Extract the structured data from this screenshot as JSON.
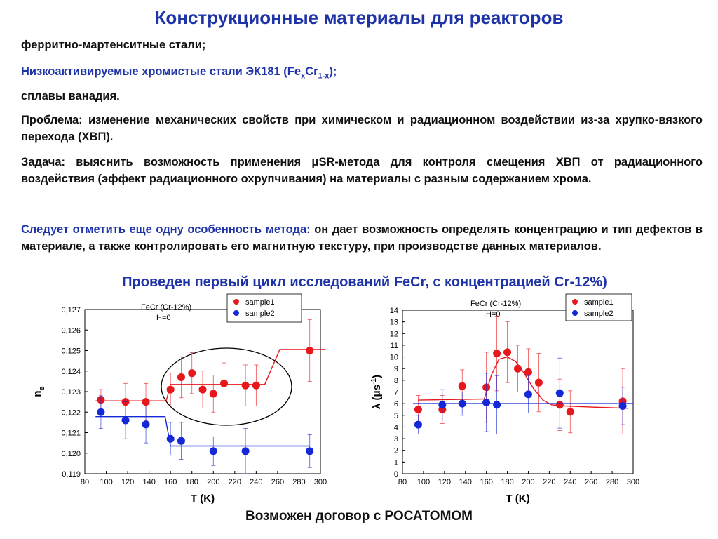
{
  "title": "Конструкционные материалы для реакторов",
  "lines": {
    "l1": "ферритно-мартенситные стали;",
    "l2_pre": "Низкоактивируемые хромистые стали ЭК181 (Fe",
    "l2_sub1": "x",
    "l2_mid": "Cr",
    "l2_sub2": "1-x",
    "l2_post": ");",
    "l3": "сплавы ванадия.",
    "problem": "Проблема: изменение механических свойств при химическом и радиационном воздействии из-за хрупко-вязкого перехода (ХВП).",
    "task": "Задача: выяснить возможность применения μSR-метода для контроля смещения ХВП от радиационного воздействия (эффект радиационного охрупчивания) на материалы с разным содержанием хрома.",
    "note_blue": "Следует отметить еще одну особенность метода:",
    "note_black": " он дает возможность определять концентрацию и тип дефектов в материале, а также контролировать его магнитную текстуру, при производстве данных материалов."
  },
  "subtitle": "Проведен первый цикл исследований FeCr, с концентрацией Cr-12%)",
  "footer": "Возможен договор с РОСАТОМОМ",
  "colors": {
    "heading": "#1f33a8",
    "sample1": "#e8171b",
    "sample2": "#1428d8",
    "text": "#111111"
  },
  "chart_data": [
    {
      "type": "scatter",
      "annotation": [
        "FeCr (Cr-12%)",
        "H=0"
      ],
      "xlabel": "T (K)",
      "ylabel": "n",
      "ylabel_sub": "e",
      "xlim": [
        80,
        300
      ],
      "ylim": [
        0.119,
        0.127
      ],
      "xticks": [
        80,
        100,
        120,
        140,
        160,
        180,
        200,
        220,
        240,
        260,
        280,
        300
      ],
      "yticks": [
        0.119,
        0.12,
        0.121,
        0.122,
        0.123,
        0.124,
        0.125,
        0.126,
        0.127
      ],
      "ytick_labels": [
        "0,119",
        "0,120",
        "0,121",
        "0,122",
        "0,123",
        "0,124",
        "0,125",
        "0,126",
        "0,127"
      ],
      "legend": "top-right",
      "ellipse": true,
      "series": [
        {
          "name": "sample1",
          "color": "#e8171b",
          "x": [
            95,
            118,
            137,
            160,
            170,
            180,
            190,
            200,
            210,
            230,
            240,
            290
          ],
          "y": [
            0.1226,
            0.1225,
            0.1225,
            0.1231,
            0.1237,
            0.1239,
            0.1231,
            0.1229,
            0.1234,
            0.1233,
            0.1233,
            0.125
          ],
          "err": [
            0.0005,
            0.0009,
            0.0009,
            0.0008,
            0.001,
            0.001,
            0.0009,
            0.0009,
            0.001,
            0.001,
            0.001,
            0.0015
          ],
          "fit": [
            [
              90,
              0.12255
            ],
            [
              156,
              0.12255
            ],
            [
              160,
              0.12335
            ],
            [
              248,
              0.12335
            ],
            [
              262,
              0.12505
            ],
            [
              305,
              0.12505
            ]
          ]
        },
        {
          "name": "sample2",
          "color": "#1428d8",
          "x": [
            95,
            118,
            137,
            160,
            170,
            200,
            230,
            290
          ],
          "y": [
            0.122,
            0.1216,
            0.1214,
            0.1207,
            0.1206,
            0.1201,
            0.1201,
            0.1201
          ],
          "err": [
            0.0008,
            0.0009,
            0.0009,
            0.0008,
            0.0009,
            0.0007,
            0.0011,
            0.0008
          ],
          "fit": [
            [
              90,
              0.12178
            ],
            [
              155,
              0.12178
            ],
            [
              160,
              0.12035
            ],
            [
              290,
              0.12035
            ]
          ]
        }
      ]
    },
    {
      "type": "scatter",
      "annotation": [
        "FeCr (Cr-12%)",
        "H=0"
      ],
      "xlabel": "T (K)",
      "ylabel": "λ (μs",
      "ylabel_sup": "-1",
      "ylabel_post": ")",
      "xlim": [
        80,
        300
      ],
      "ylim": [
        0,
        14
      ],
      "xticks": [
        80,
        100,
        120,
        140,
        160,
        180,
        200,
        220,
        240,
        260,
        280,
        300
      ],
      "yticks": [
        0,
        1,
        2,
        3,
        4,
        5,
        6,
        7,
        8,
        9,
        10,
        11,
        12,
        13,
        14
      ],
      "ytick_labels": [
        "0",
        "1",
        "2",
        "3",
        "4",
        "5",
        "6",
        "7",
        "8",
        "9",
        "10",
        "11",
        "12",
        "13",
        "14"
      ],
      "legend": "top-right",
      "ellipse": false,
      "series": [
        {
          "name": "sample1",
          "color": "#e8171b",
          "x": [
            95,
            118,
            137,
            160,
            170,
            180,
            190,
            200,
            210,
            230,
            240,
            290
          ],
          "y": [
            5.5,
            5.5,
            7.5,
            7.4,
            10.3,
            10.4,
            9.0,
            8.7,
            7.8,
            5.9,
            5.3,
            6.2
          ],
          "err": [
            1.2,
            1.2,
            1.4,
            3.0,
            3.2,
            2.6,
            2.0,
            2.0,
            2.5,
            2.2,
            1.8,
            2.8
          ],
          "fit": [
            [
              95,
              6.3
            ],
            [
              158,
              6.4
            ],
            [
              165,
              8.5
            ],
            [
              172,
              9.8
            ],
            [
              180,
              10.0
            ],
            [
              188,
              9.6
            ],
            [
              196,
              8.6
            ],
            [
              205,
              7.3
            ],
            [
              214,
              6.3
            ],
            [
              222,
              5.9
            ],
            [
              235,
              5.8
            ],
            [
              260,
              5.7
            ],
            [
              295,
              5.6
            ]
          ]
        },
        {
          "name": "sample2",
          "color": "#1428d8",
          "x": [
            95,
            118,
            137,
            160,
            170,
            200,
            230,
            290
          ],
          "y": [
            4.2,
            5.9,
            6.0,
            6.1,
            5.9,
            6.8,
            6.9,
            5.8
          ],
          "err": [
            0.8,
            1.3,
            1.0,
            2.5,
            2.5,
            1.6,
            3.0,
            1.6
          ],
          "fit": [
            [
              90,
              6.0
            ],
            [
              300,
              6.0
            ]
          ]
        }
      ]
    }
  ]
}
